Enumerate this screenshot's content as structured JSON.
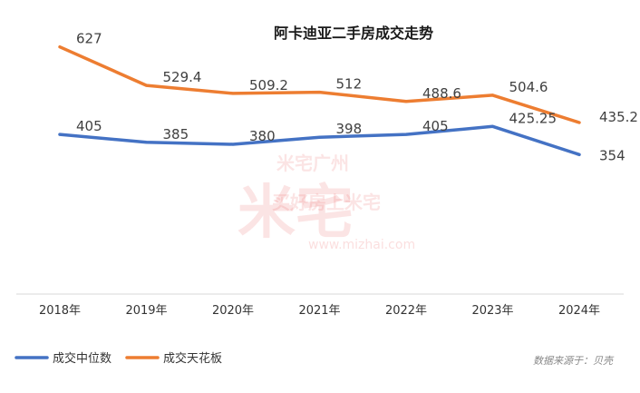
{
  "chart_data": {
    "type": "line",
    "title": "阿卡迪亚二手房成交走势",
    "categories": [
      "2018年",
      "2019年",
      "2020年",
      "2021年",
      "2022年",
      "2023年",
      "2024年"
    ],
    "series": [
      {
        "name": "成交中位数",
        "color": "#4472c4",
        "values": [
          405,
          385,
          380,
          398,
          405,
          425.25,
          354
        ],
        "labels": [
          "405",
          "385",
          "380",
          "398",
          "405",
          "425.25",
          "354"
        ]
      },
      {
        "name": "成交天花板",
        "color": "#ed7d31",
        "values": [
          627,
          529.4,
          509.2,
          512,
          488.6,
          504.6,
          435.2
        ],
        "labels": [
          "627",
          "529.4",
          "509.2",
          "512",
          "488.6",
          "504.6",
          "435.2"
        ]
      }
    ],
    "ylim": [
      0,
      700
    ],
    "grid": false,
    "legend_position": "bottom-left",
    "source": "数据来源于：贝壳"
  },
  "watermark": {
    "brand": "米宅",
    "city": "米宅广州",
    "slogan": "买好房上米宅",
    "url": "www.mizhai.com"
  }
}
